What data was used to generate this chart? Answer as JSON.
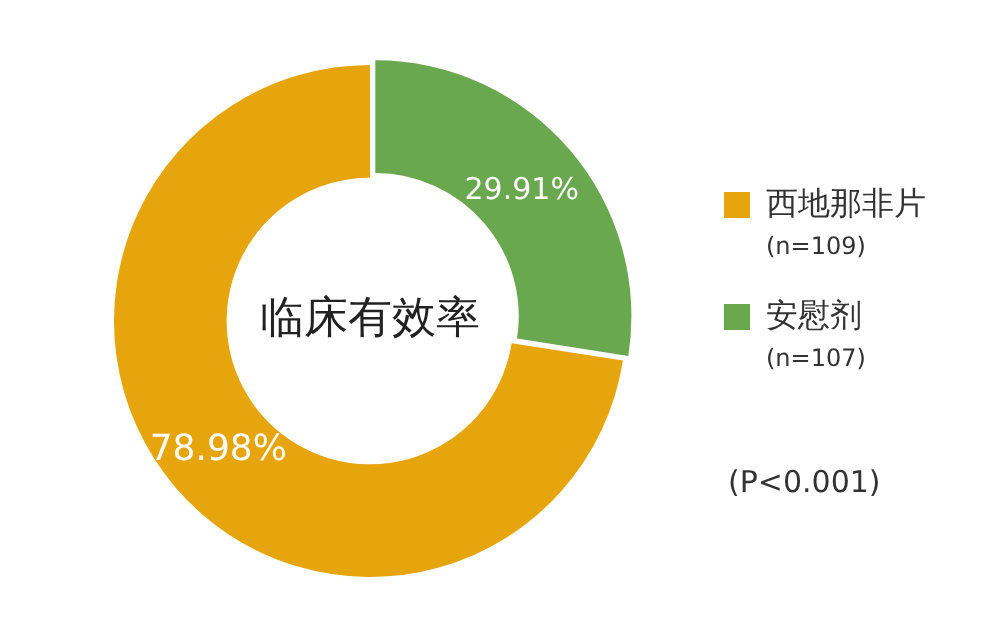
{
  "chart_data": {
    "type": "donut",
    "title": "临床有效率",
    "categories": [
      "西地那非片",
      "安慰剂"
    ],
    "values": [
      78.98,
      29.91
    ],
    "value_labels": [
      "78.98%",
      "29.91%"
    ],
    "colors": [
      "#e6a50c",
      "#6aa84f"
    ],
    "legend": "right",
    "annotations": [
      "(n=109)",
      "(n=107)",
      "(P<0.001)"
    ]
  }
}
